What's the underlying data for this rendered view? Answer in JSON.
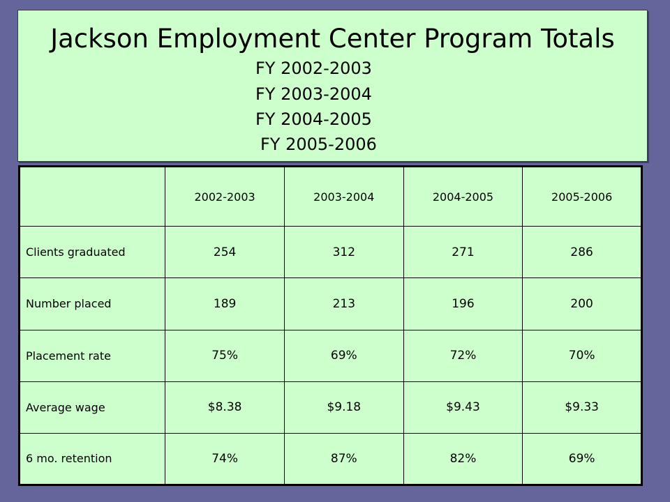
{
  "title": "Jackson Employment Center Program Totals",
  "fiscal_years": [
    "FY 2002-2003",
    "FY 2003-2004",
    "FY 2004-2005",
    "FY 2005-2006"
  ],
  "table": {
    "corner": "",
    "headers": [
      "2002-2003",
      "2003-2004",
      "2004-2005",
      "2005-2006"
    ],
    "rows": [
      {
        "label": "Clients graduated",
        "values": [
          "254",
          "312",
          "271",
          "286"
        ]
      },
      {
        "label": "Number placed",
        "values": [
          "189",
          "213",
          "196",
          "200"
        ]
      },
      {
        "label": "Placement rate",
        "values": [
          "75%",
          "69%",
          "72%",
          "70%"
        ]
      },
      {
        "label": "Average wage",
        "values": [
          "$8.38",
          "$9.18",
          "$9.43",
          "$9.33"
        ]
      },
      {
        "label": "6 mo. retention",
        "values": [
          "74%",
          "87%",
          "82%",
          "69%"
        ]
      }
    ]
  },
  "colors": {
    "background": "#64659a",
    "panel": "#ccffcc"
  }
}
